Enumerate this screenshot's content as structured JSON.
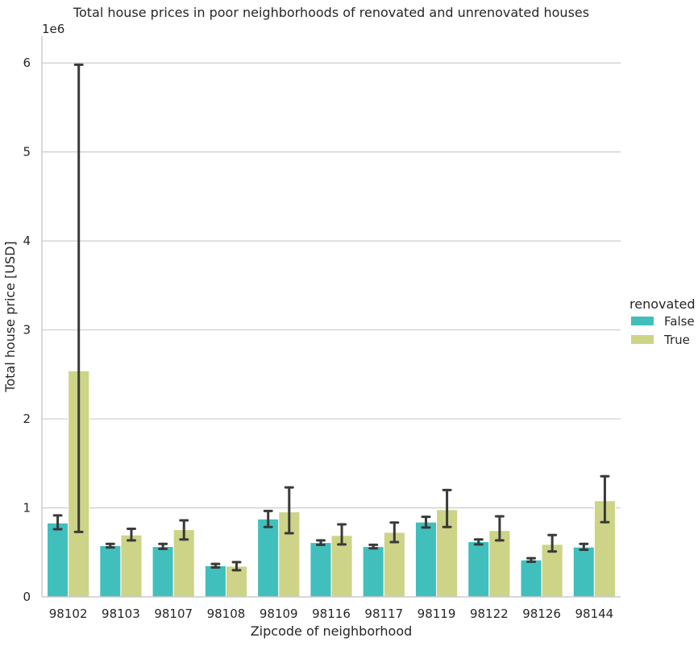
{
  "chart_data": {
    "type": "bar",
    "title": "Total house prices in poor neighborhoods of renovated and unrenovated houses",
    "xlabel": "Zipcode of neighborhood",
    "ylabel": "Total house price [USD]",
    "y_offset_label": "1e6",
    "y_scale": 1000000,
    "ylim": [
      0,
      6300000
    ],
    "yticks": [
      0,
      1000000,
      2000000,
      3000000,
      4000000,
      5000000,
      6000000
    ],
    "ytick_labels": [
      "0",
      "1",
      "2",
      "3",
      "4",
      "5",
      "6"
    ],
    "grid": "horizontal",
    "legend_placement": "right",
    "legend_title": "renovated",
    "categories": [
      "98102",
      "98103",
      "98107",
      "98108",
      "98109",
      "98116",
      "98117",
      "98119",
      "98122",
      "98126",
      "98144"
    ],
    "series": [
      {
        "name": "False",
        "color": "#40bfbd",
        "values": [
          830000,
          575000,
          565000,
          350000,
          875000,
          610000,
          565000,
          840000,
          620000,
          415000,
          560000
        ],
        "ci_low": [
          760000,
          555000,
          540000,
          330000,
          785000,
          585000,
          545000,
          780000,
          590000,
          395000,
          530000
        ],
        "ci_high": [
          915000,
          595000,
          595000,
          370000,
          965000,
          635000,
          585000,
          900000,
          645000,
          435000,
          595000
        ]
      },
      {
        "name": "True",
        "color": "#cdd487",
        "values": [
          2540000,
          695000,
          755000,
          345000,
          955000,
          690000,
          725000,
          980000,
          745000,
          590000,
          1080000
        ],
        "ci_low": [
          730000,
          635000,
          645000,
          300000,
          715000,
          590000,
          615000,
          785000,
          635000,
          510000,
          840000
        ],
        "ci_high": [
          5980000,
          765000,
          860000,
          390000,
          1230000,
          815000,
          835000,
          1200000,
          905000,
          695000,
          1355000
        ]
      }
    ]
  }
}
